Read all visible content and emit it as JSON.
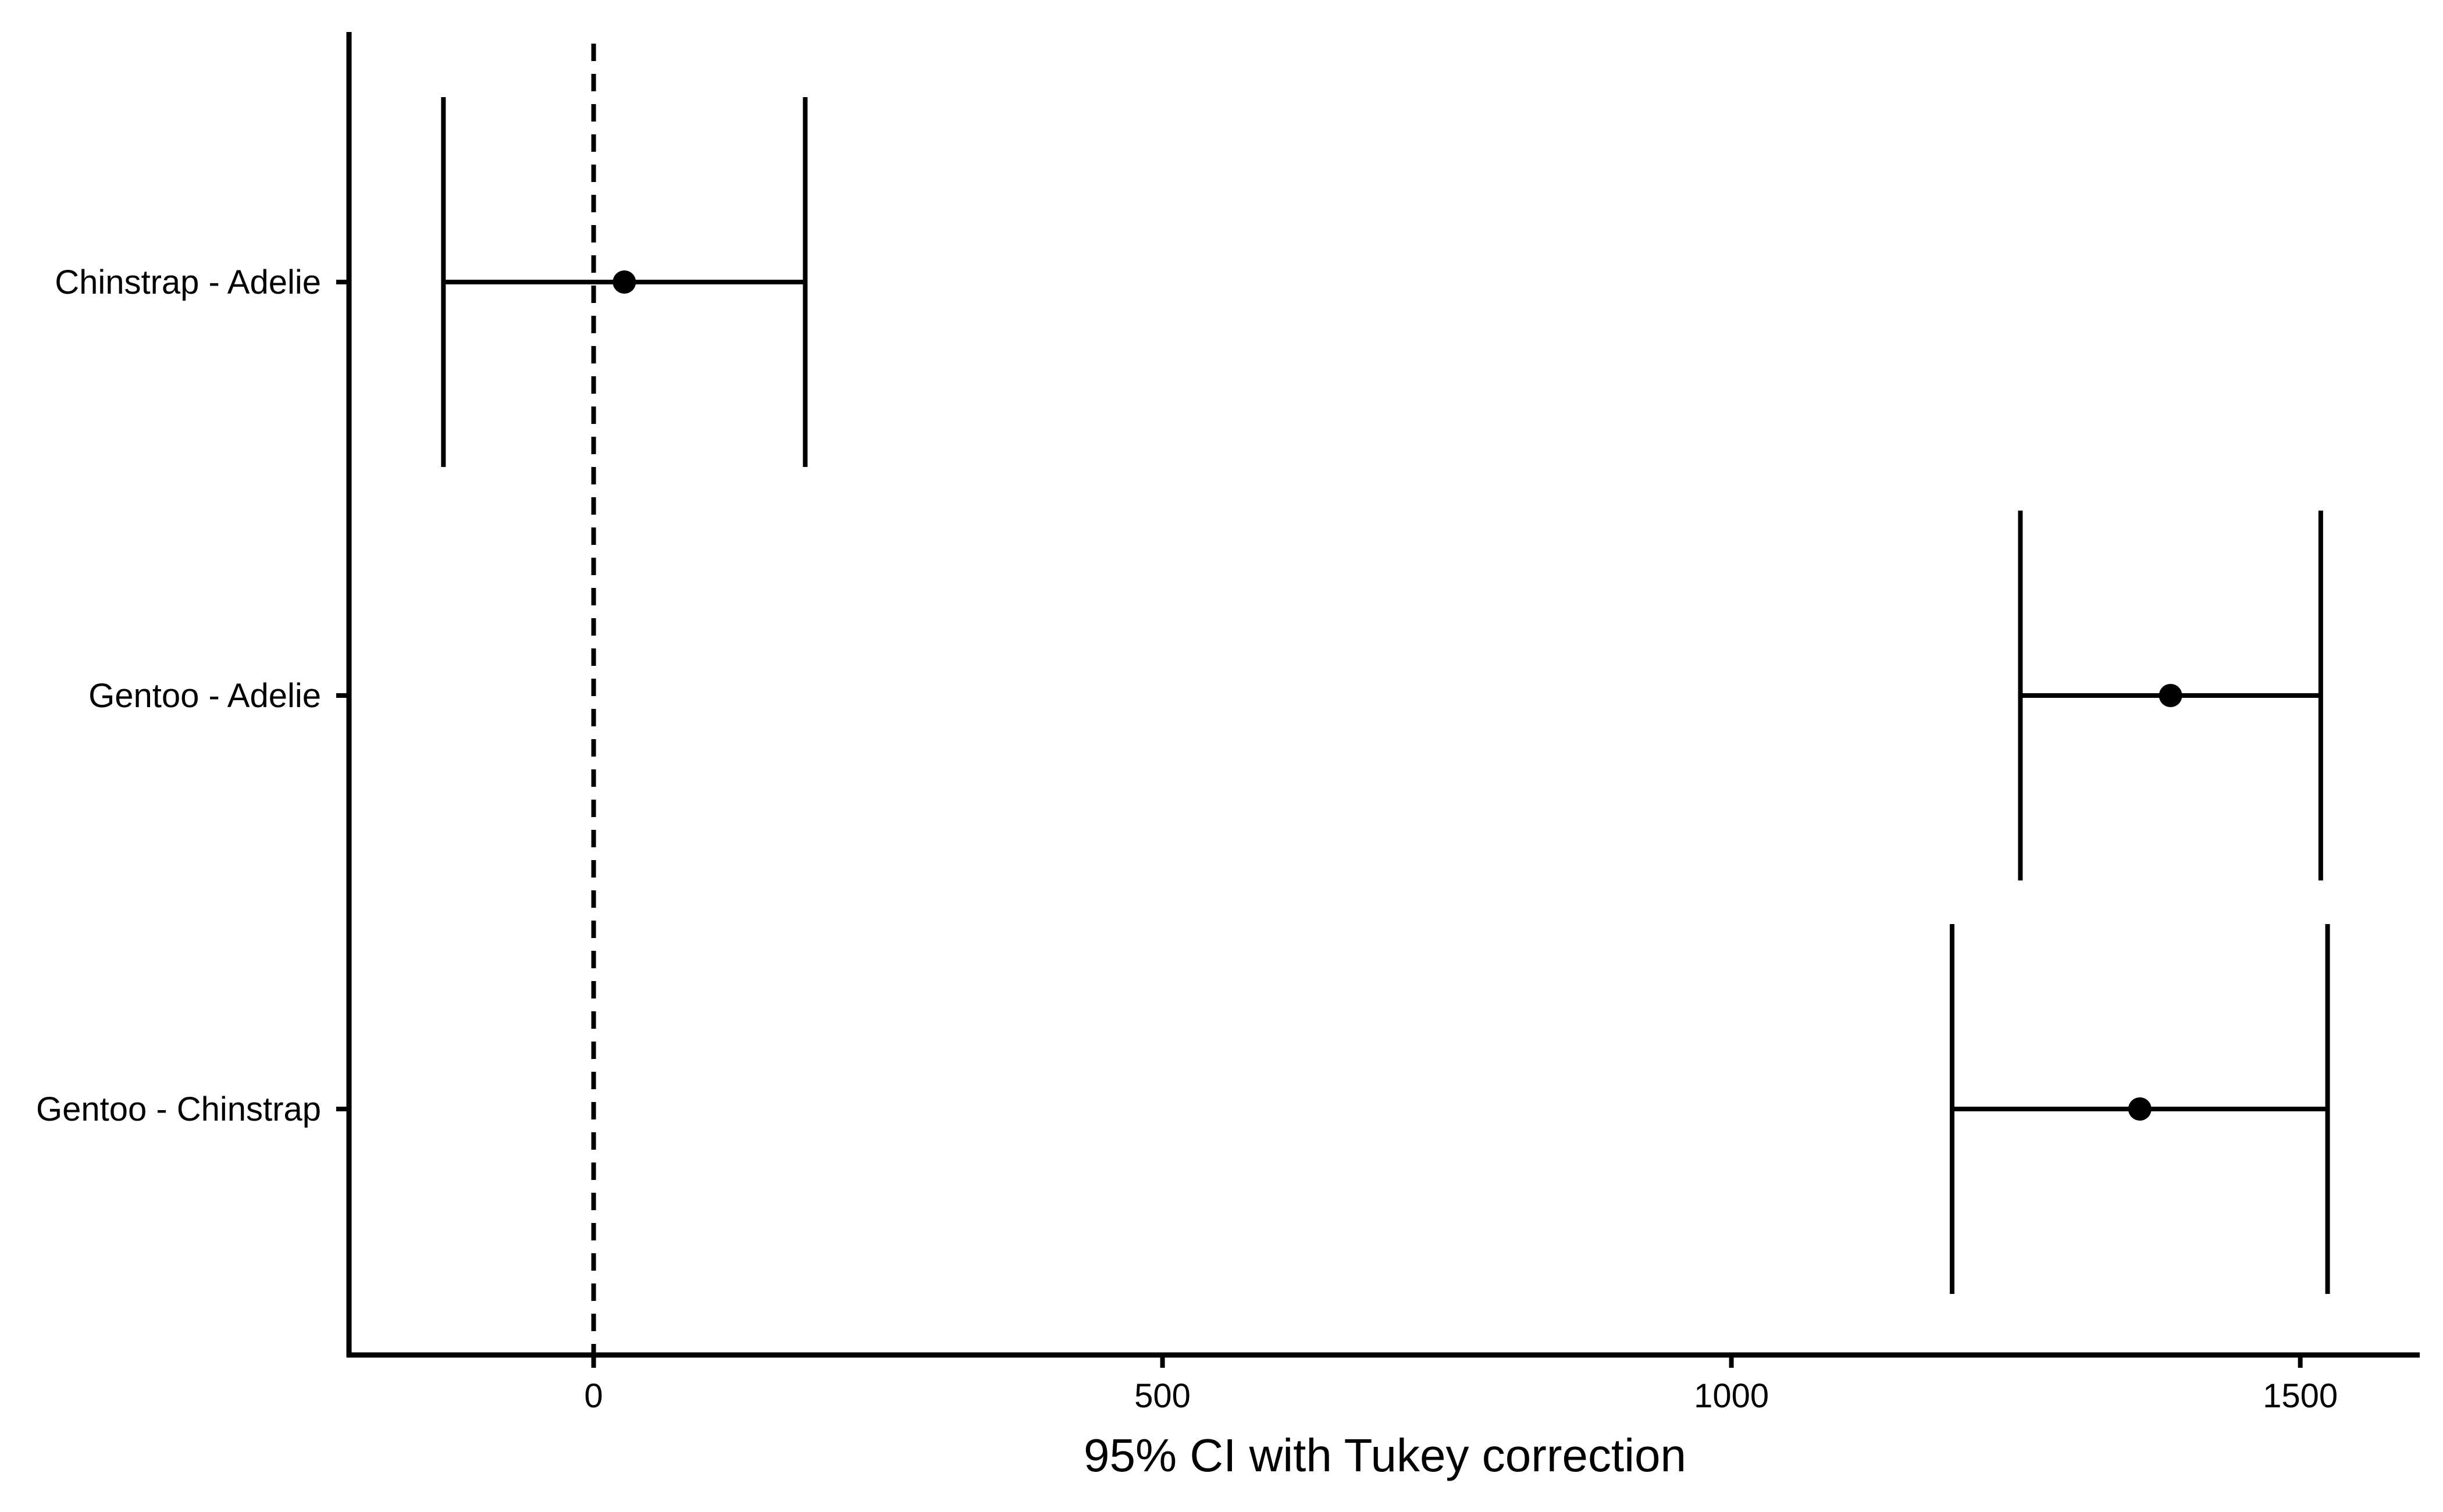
{
  "chart_data": {
    "type": "errorbar",
    "title": "",
    "xlabel": "95% CI with Tukey correction",
    "ylabel": "",
    "xlim": [
      -215,
      1605
    ],
    "xticks": [
      0,
      500,
      1000,
      1500
    ],
    "reference_line": {
      "x": 0,
      "style": "dashed"
    },
    "categories": [
      "Chinstrap - Adelie",
      "Gentoo - Adelie",
      "Gentoo - Chinstrap"
    ],
    "estimates": [
      27,
      1386,
      1359
    ],
    "lower": [
      -132,
      1254,
      1194
    ],
    "upper": [
      186,
      1518,
      1524
    ],
    "grid": false,
    "legend": "none",
    "colors": {
      "marks": "#000000",
      "background": "#ffffff"
    }
  }
}
